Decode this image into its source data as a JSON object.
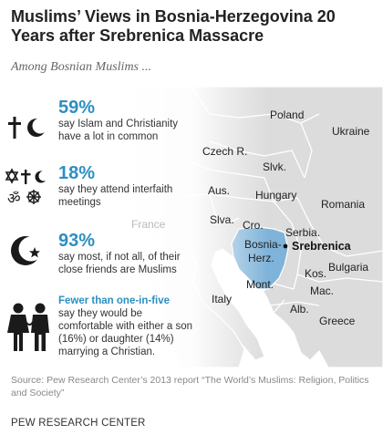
{
  "title": "Muslims’ Views in Bosnia-Herzegovina 20 Years after Srebrenica Massacre",
  "subtitle": "Among Bosnian Muslims ...",
  "facts": [
    {
      "pct": "59%",
      "text": "say Islam and Christianity have a lot in common",
      "icon": "cross-crescent-icon"
    },
    {
      "pct": "18%",
      "text": "say they attend interfaith meetings",
      "icon": "interfaith-symbols-icon"
    },
    {
      "pct": "93%",
      "text": "say most, if not all, of their close friends are Muslims",
      "icon": "crescent-star-icon"
    },
    {
      "lead": "Fewer than one-in-five",
      "text": "say they would be comfortable with either a son (16%) or daughter (14%) marrying a Christian.",
      "icon": "couple-icon"
    }
  ],
  "map": {
    "countries": {
      "poland": "Poland",
      "ukraine": "Ukraine",
      "czech": "Czech R.",
      "slovakia": "Slvk.",
      "austria": "Aus.",
      "hungary": "Hungary",
      "romania": "Romania",
      "france": "France",
      "slovenia": "Slva.",
      "croatia": "Cro.",
      "serbia": "Serbia.",
      "bosnia_line1": "Bosnia-",
      "bosnia_line2": "Herz.",
      "bulgaria": "Bulgaria",
      "kosovo": "Kos.",
      "montenegro": "Mont.",
      "macedonia": "Mac.",
      "italy": "Italy",
      "albania": "Alb.",
      "greece": "Greece"
    },
    "city": "Srebrenica",
    "colors": {
      "highlight": "#7fb3d9",
      "land": "#dcdcdc",
      "water": "#ffffff",
      "border": "#ffffff",
      "accent": "#2d8fc1"
    }
  },
  "source": "Source: Pew Research Center’s 2013 report “The World’s Muslims: Religion, Politics and Society”",
  "brand": "PEW RESEARCH CENTER"
}
